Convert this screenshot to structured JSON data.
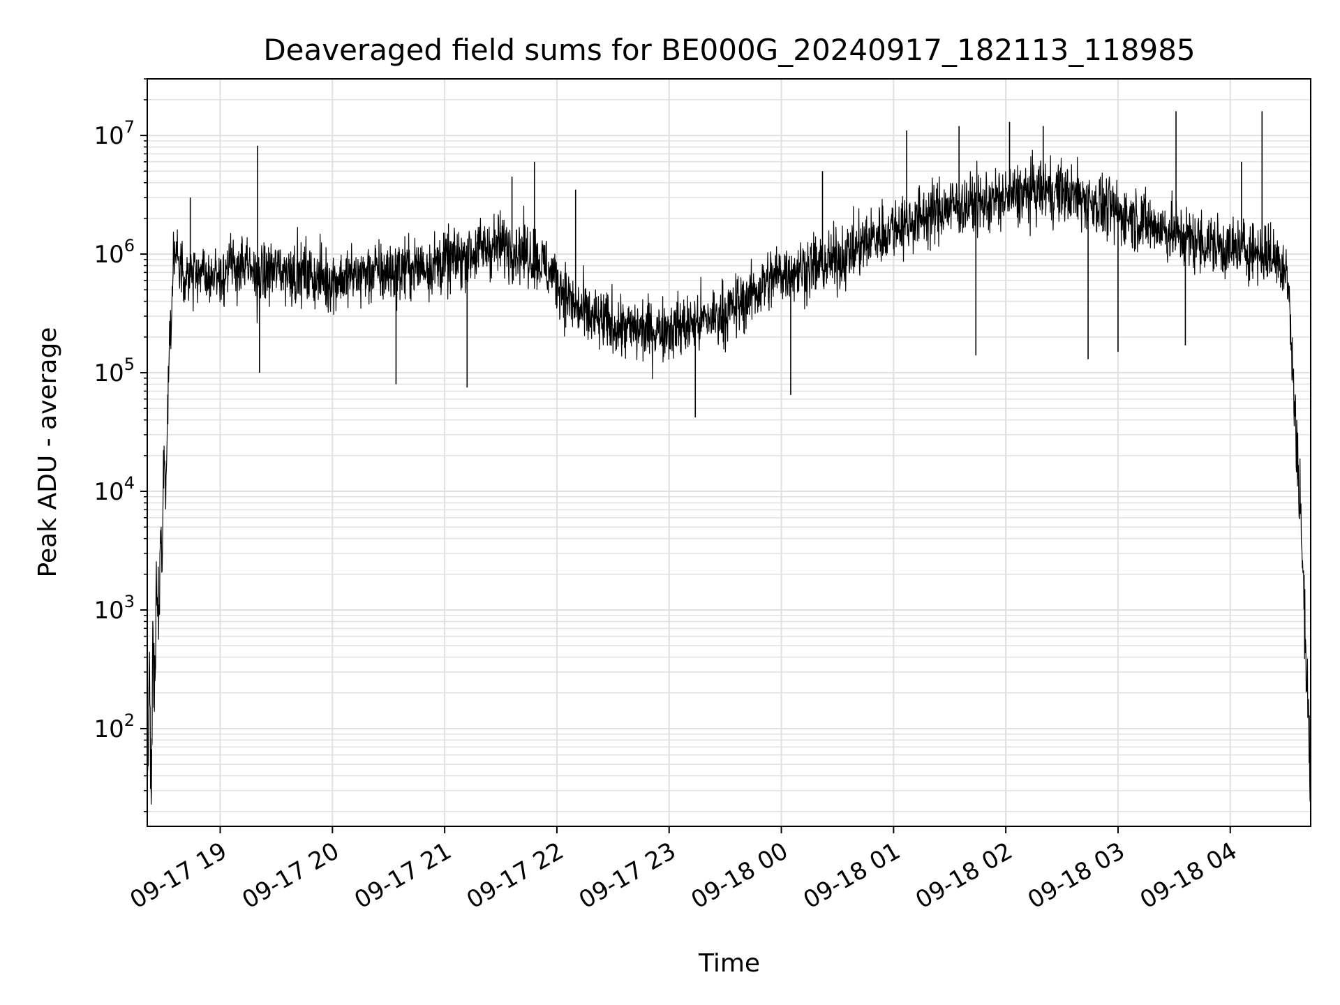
{
  "chart_data": {
    "type": "line",
    "title": "Deaveraged field sums for BE000G_20240917_182113_118985",
    "xlabel": "Time",
    "ylabel": "Peak ADU - average",
    "y_scale": "log",
    "ylim": [
      15,
      30000000
    ],
    "xlim": [
      "2024-09-17 18:21",
      "2024-09-18 04:43"
    ],
    "grid": true,
    "line_color": "#000000",
    "x_ticks": [
      {
        "t": "2024-09-17 19:00",
        "label": "09-17 19"
      },
      {
        "t": "2024-09-17 20:00",
        "label": "09-17 20"
      },
      {
        "t": "2024-09-17 21:00",
        "label": "09-17 21"
      },
      {
        "t": "2024-09-17 22:00",
        "label": "09-17 22"
      },
      {
        "t": "2024-09-17 23:00",
        "label": "09-17 23"
      },
      {
        "t": "2024-09-18 00:00",
        "label": "09-18 00"
      },
      {
        "t": "2024-09-18 01:00",
        "label": "09-18 01"
      },
      {
        "t": "2024-09-18 02:00",
        "label": "09-18 02"
      },
      {
        "t": "2024-09-18 03:00",
        "label": "09-18 03"
      },
      {
        "t": "2024-09-18 04:00",
        "label": "09-18 04"
      }
    ],
    "y_ticks": [
      {
        "value": 100,
        "base": "10",
        "exp": "2"
      },
      {
        "value": 1000,
        "base": "10",
        "exp": "3"
      },
      {
        "value": 10000,
        "base": "10",
        "exp": "4"
      },
      {
        "value": 100000,
        "base": "10",
        "exp": "5"
      },
      {
        "value": 1000000,
        "base": "10",
        "exp": "6"
      },
      {
        "value": 10000000,
        "base": "10",
        "exp": "7"
      }
    ],
    "series": [
      {
        "points": [
          [
            "2024-09-17 18:21",
            15
          ],
          [
            "2024-09-17 18:22",
            300
          ],
          [
            "2024-09-17 18:23",
            30
          ],
          [
            "2024-09-17 18:24",
            500
          ],
          [
            "2024-09-17 18:25",
            150
          ],
          [
            "2024-09-17 18:26",
            2000
          ],
          [
            "2024-09-17 18:27",
            800
          ],
          [
            "2024-09-17 18:28",
            4000
          ],
          [
            "2024-09-17 18:29",
            2000
          ],
          [
            "2024-09-17 18:30",
            20000
          ],
          [
            "2024-09-17 18:31",
            12000
          ],
          [
            "2024-09-17 18:32",
            60000
          ],
          [
            "2024-09-17 18:33",
            200000
          ],
          [
            "2024-09-17 18:34",
            350000
          ],
          [
            "2024-09-17 18:35",
            1000000
          ],
          [
            "2024-09-17 18:40",
            700000
          ],
          [
            "2024-09-17 18:50",
            650000
          ],
          [
            "2024-09-17 19:00",
            700000
          ],
          [
            "2024-09-17 19:10",
            800000
          ],
          [
            "2024-09-17 19:20",
            650000
          ],
          [
            "2024-09-17 19:30",
            750000
          ],
          [
            "2024-09-17 19:40",
            700000
          ],
          [
            "2024-09-17 19:50",
            650000
          ],
          [
            "2024-09-17 20:00",
            600000
          ],
          [
            "2024-09-17 20:10",
            650000
          ],
          [
            "2024-09-17 20:20",
            700000
          ],
          [
            "2024-09-17 20:30",
            700000
          ],
          [
            "2024-09-17 20:40",
            750000
          ],
          [
            "2024-09-17 20:50",
            800000
          ],
          [
            "2024-09-17 21:00",
            850000
          ],
          [
            "2024-09-17 21:10",
            950000
          ],
          [
            "2024-09-17 21:20",
            1100000
          ],
          [
            "2024-09-17 21:30",
            1200000
          ],
          [
            "2024-09-17 21:40",
            1100000
          ],
          [
            "2024-09-17 21:50",
            900000
          ],
          [
            "2024-09-17 22:00",
            600000
          ],
          [
            "2024-09-17 22:10",
            350000
          ],
          [
            "2024-09-17 22:20",
            280000
          ],
          [
            "2024-09-17 22:30",
            250000
          ],
          [
            "2024-09-17 22:40",
            230000
          ],
          [
            "2024-09-17 22:50",
            230000
          ],
          [
            "2024-09-17 23:00",
            240000
          ],
          [
            "2024-09-17 23:10",
            250000
          ],
          [
            "2024-09-17 23:20",
            280000
          ],
          [
            "2024-09-17 23:30",
            320000
          ],
          [
            "2024-09-17 23:40",
            400000
          ],
          [
            "2024-09-17 23:50",
            550000
          ],
          [
            "2024-09-18 00:00",
            700000
          ],
          [
            "2024-09-18 00:10",
            750000
          ],
          [
            "2024-09-18 00:20",
            800000
          ],
          [
            "2024-09-18 00:30",
            900000
          ],
          [
            "2024-09-18 00:40",
            1100000
          ],
          [
            "2024-09-18 00:50",
            1400000
          ],
          [
            "2024-09-18 01:00",
            1700000
          ],
          [
            "2024-09-18 01:10",
            1900000
          ],
          [
            "2024-09-18 01:20",
            2200000
          ],
          [
            "2024-09-18 01:30",
            2500000
          ],
          [
            "2024-09-18 01:40",
            2600000
          ],
          [
            "2024-09-18 01:50",
            2700000
          ],
          [
            "2024-09-18 02:00",
            3000000
          ],
          [
            "2024-09-18 02:10",
            3200000
          ],
          [
            "2024-09-18 02:20",
            3500000
          ],
          [
            "2024-09-18 02:30",
            3300000
          ],
          [
            "2024-09-18 02:40",
            3000000
          ],
          [
            "2024-09-18 02:50",
            2600000
          ],
          [
            "2024-09-18 03:00",
            2200000
          ],
          [
            "2024-09-18 03:10",
            2000000
          ],
          [
            "2024-09-18 03:20",
            1700000
          ],
          [
            "2024-09-18 03:30",
            1500000
          ],
          [
            "2024-09-18 03:40",
            1300000
          ],
          [
            "2024-09-18 03:50",
            1200000
          ],
          [
            "2024-09-18 04:00",
            1100000
          ],
          [
            "2024-09-18 04:10",
            1100000
          ],
          [
            "2024-09-18 04:20",
            1000000
          ],
          [
            "2024-09-18 04:30",
            800000
          ],
          [
            "2024-09-18 04:32",
            300000
          ],
          [
            "2024-09-18 04:34",
            60000
          ],
          [
            "2024-09-18 04:36",
            20000
          ],
          [
            "2024-09-18 04:38",
            5000
          ],
          [
            "2024-09-18 04:40",
            600
          ],
          [
            "2024-09-18 04:42",
            100
          ],
          [
            "2024-09-18 04:43",
            15
          ]
        ],
        "spikes": [
          [
            "2024-09-17 18:30",
            19000
          ],
          [
            "2024-09-17 18:44",
            3000000
          ],
          [
            "2024-09-17 19:20",
            8200000
          ],
          [
            "2024-09-17 19:21",
            100000
          ],
          [
            "2024-09-17 20:34",
            80000
          ],
          [
            "2024-09-17 21:12",
            75000
          ],
          [
            "2024-09-17 21:48",
            6000000
          ],
          [
            "2024-09-17 21:36",
            4500000
          ],
          [
            "2024-09-17 22:10",
            3500000
          ],
          [
            "2024-09-17 23:14",
            42000
          ],
          [
            "2024-09-18 00:05",
            65000
          ],
          [
            "2024-09-18 00:22",
            5000000
          ],
          [
            "2024-09-18 01:07",
            11000000
          ],
          [
            "2024-09-18 01:35",
            12000000
          ],
          [
            "2024-09-18 01:44",
            140000
          ],
          [
            "2024-09-18 02:02",
            13000000
          ],
          [
            "2024-09-18 02:20",
            12000000
          ],
          [
            "2024-09-18 02:44",
            130000
          ],
          [
            "2024-09-18 03:00",
            150000
          ],
          [
            "2024-09-18 03:31",
            16000000
          ],
          [
            "2024-09-18 03:36",
            170000
          ],
          [
            "2024-09-18 04:17",
            16000000
          ],
          [
            "2024-09-18 04:06",
            6000000
          ]
        ]
      }
    ]
  }
}
